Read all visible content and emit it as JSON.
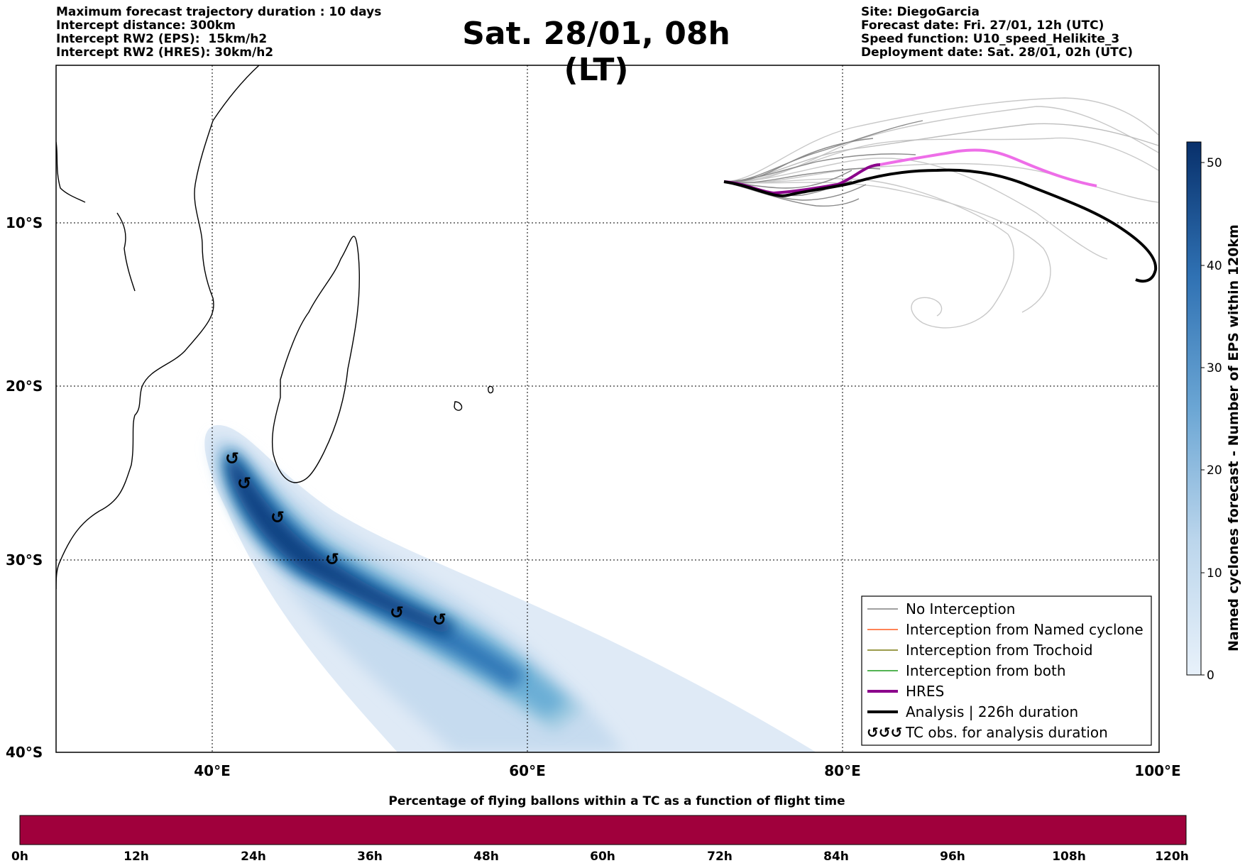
{
  "header_left": [
    "Maximum forecast trajectory duration : 10 days",
    "Intercept distance: 300km",
    "Intercept RW2 (EPS):  15km/h2",
    "Intercept RW2 (HRES): 30km/h2"
  ],
  "title": "Sat. 28/01, 08h (LT)",
  "header_right": [
    "Site: DiegoGarcia",
    "Forecast date: Fri. 27/01, 12h (UTC)",
    "Speed function: U10_speed_Helikite_3",
    "Deployment date: Sat. 28/01, 02h (UTC)"
  ],
  "map": {
    "lon_labels": [
      "40°E",
      "60°E",
      "80°E",
      "100°E"
    ],
    "lat_labels": [
      "10°S",
      "20°S",
      "30°S",
      "40°S"
    ],
    "lon_range": [
      30,
      100
    ],
    "lat_range": [
      -40,
      0
    ],
    "gridlines": "dotted"
  },
  "tc_obs_symbol": "↺",
  "legend": {
    "items": [
      {
        "label": "No Interception",
        "color": "#808080"
      },
      {
        "label": "Interception from Named cyclone",
        "color": "#ff5a1f"
      },
      {
        "label": "Interception from Trochoid",
        "color": "#7a7a10"
      },
      {
        "label": "Interception from both",
        "color": "#1a9a1a"
      },
      {
        "label": "HRES",
        "color": "#8b008b"
      },
      {
        "label": "Analysis | 226h duration",
        "color": "#000000"
      },
      {
        "label": "TC obs. for analysis duration",
        "color": "#000000",
        "symbol": "↺↺↺"
      }
    ]
  },
  "colorbar_right": {
    "label": "Named cyclones forecast - Number of EPS within 120km",
    "ticks": [
      "0",
      "10",
      "20",
      "30",
      "40",
      "50"
    ],
    "color_low": "#e8f1fa",
    "color_high": "#08306b"
  },
  "colorbar_bottom": {
    "title": "Percentage of flying ballons within a TC as a function of flight time",
    "ticks": [
      "0h",
      "12h",
      "24h",
      "36h",
      "48h",
      "60h",
      "72h",
      "84h",
      "96h",
      "108h",
      "120h"
    ],
    "fill_color": "#a0003c"
  },
  "colors": {
    "eps_tracks": "#8a8a8a",
    "eps_tracks_light": "#c8c8c8",
    "hres_light": "#ee6ee8",
    "hres": "#8b008b",
    "analysis": "#000000"
  }
}
